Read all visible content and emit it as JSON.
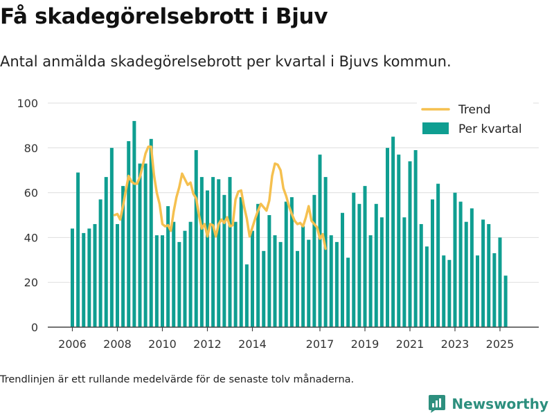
{
  "title": "Få skadegörelsebrott i Bjuv",
  "subtitle": "Antal anmälda skadegörelsebrott per kvartal i Bjuvs kommun.",
  "footnote": "Trendlinjen är ett rullande medelvärde för de senaste tolv månaderna.",
  "brand": {
    "name": "Newsworthy",
    "icon": "newsworthy-logo-icon"
  },
  "colors": {
    "bar": "#0f9e91",
    "trend": "#f5c04f",
    "grid": "#dddddd",
    "axis": "#444444",
    "brand": "#2d8f7e"
  },
  "chart_data": {
    "type": "bar",
    "title": "Få skadegörelsebrott i Bjuv",
    "xlabel": "",
    "ylabel": "",
    "ylim": [
      0,
      100
    ],
    "yticks": [
      0,
      20,
      40,
      60,
      80,
      100
    ],
    "grid": true,
    "legend_position": "top-right",
    "x_tick_labels": [
      {
        "label": "2006",
        "q": 0
      },
      {
        "label": "2008",
        "q": 8
      },
      {
        "label": "2010",
        "q": 16
      },
      {
        "label": "2012",
        "q": 24
      },
      {
        "label": "2014",
        "q": 32
      },
      {
        "label": "2017",
        "q": 44
      },
      {
        "label": "2019",
        "q": 52
      },
      {
        "label": "2021",
        "q": 60
      },
      {
        "label": "2023",
        "q": 68
      },
      {
        "label": "2025",
        "q": 76
      }
    ],
    "series": [
      {
        "name": "Per kvartal",
        "type": "bar",
        "values": [
          44,
          69,
          42,
          44,
          46,
          57,
          67,
          80,
          46,
          63,
          83,
          92,
          73,
          73,
          84,
          41,
          41,
          54,
          47,
          38,
          43,
          47,
          79,
          67,
          61,
          67,
          66,
          59,
          67,
          47,
          58,
          28,
          43,
          55,
          34,
          50,
          41,
          38,
          56,
          58,
          34,
          45,
          39,
          59,
          77,
          67,
          41,
          38,
          51,
          31,
          60,
          55,
          63,
          41,
          55,
          49,
          80,
          85,
          77,
          49,
          74,
          79,
          46,
          36,
          57,
          64,
          32,
          30,
          60,
          56,
          47,
          53,
          32,
          48,
          46,
          33,
          40,
          23
        ]
      },
      {
        "name": "Trend",
        "type": "line",
        "start_q": 7.5,
        "step": 0.5,
        "values": [
          50,
          50.5,
          48,
          54,
          61,
          67.5,
          65,
          64,
          64,
          67,
          72,
          77.5,
          80.5,
          80.5,
          68,
          60,
          55,
          46,
          45,
          45.5,
          43,
          51.5,
          58,
          62.5,
          68.5,
          66,
          63.5,
          64.5,
          59.5,
          57.5,
          50,
          44,
          46,
          40.5,
          46,
          45.5,
          40.5,
          46,
          48,
          46.5,
          49,
          45,
          45.5,
          57,
          60.5,
          61,
          54,
          48.5,
          40.5,
          44.5,
          48.5,
          52,
          55,
          53.5,
          52,
          56.5,
          67.5,
          73,
          72.5,
          70,
          62,
          58.5,
          54,
          50.5,
          47.5,
          46,
          46.5,
          45,
          49,
          54,
          47.5,
          46,
          44.5,
          39.5,
          41.5,
          35
        ]
      }
    ]
  }
}
